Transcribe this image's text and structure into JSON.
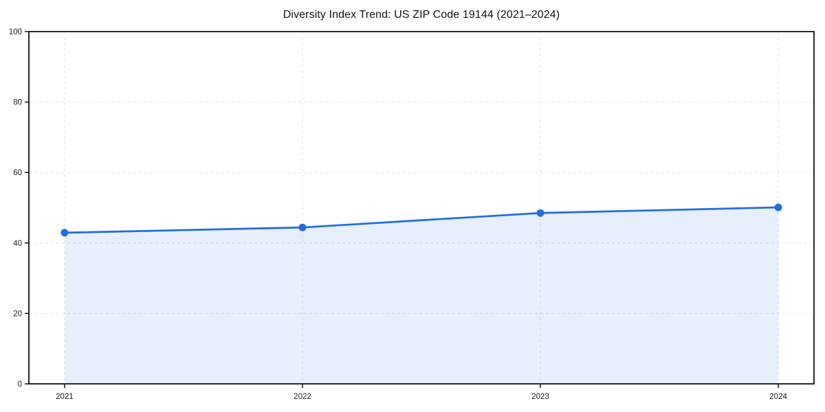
{
  "chart": {
    "title": "Diversity Index Trend: US ZIP Code 19144 (2021–2024)"
  },
  "chart_data": {
    "type": "area",
    "title": "Diversity Index Trend: US ZIP Code 19144 (2021–2024)",
    "series_name": "Diversity Index",
    "x": [
      2021,
      2022,
      2023,
      2024
    ],
    "values": [
      42.9,
      44.4,
      48.5,
      50.1
    ],
    "xticks": [
      "2021",
      "2022",
      "2023",
      "2024"
    ],
    "yticks": [
      0,
      20,
      40,
      60,
      80,
      100
    ],
    "ylim": [
      0,
      100
    ],
    "xlabel": "",
    "ylabel": "",
    "x_margin_fraction": 0.05,
    "grid": true,
    "grid_style": "dashed",
    "legend": false,
    "colors": {
      "line": "#216ee0",
      "marker": "#216ee0",
      "fill": "#216ee0",
      "fill_opacity": 0.11,
      "grid": "#e2e2e2",
      "axis": "#111111",
      "text": "#1c1c1c",
      "background": "#ffffff"
    }
  }
}
